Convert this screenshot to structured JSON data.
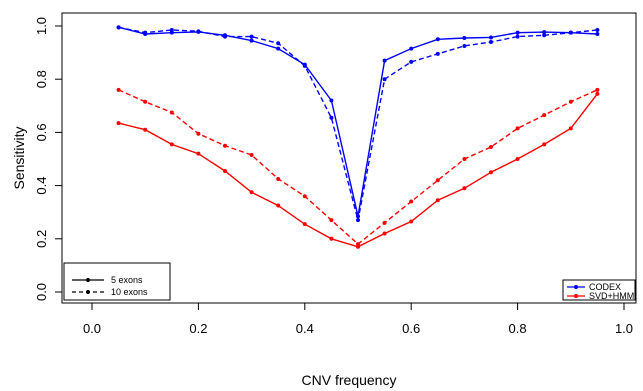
{
  "chart_data": {
    "type": "line",
    "xlabel": "CNV frequency",
    "ylabel": "Sensitivity",
    "xlim": [
      0.0,
      1.0
    ],
    "ylim": [
      0.0,
      1.0
    ],
    "xticks": [
      "0.0",
      "0.2",
      "0.4",
      "0.6",
      "0.8",
      "1.0"
    ],
    "yticks": [
      "0.0",
      "0.2",
      "0.4",
      "0.6",
      "0.8",
      "1.0"
    ],
    "x": [
      0.05,
      0.1,
      0.15,
      0.2,
      0.25,
      0.3,
      0.35,
      0.4,
      0.45,
      0.5,
      0.55,
      0.6,
      0.65,
      0.7,
      0.75,
      0.8,
      0.85,
      0.9,
      0.95
    ],
    "series": [
      {
        "name": "CODEX",
        "exons": "5 exons",
        "color": "#0000ff",
        "dash": "solid",
        "values": [
          0.995,
          0.97,
          0.975,
          0.978,
          0.965,
          0.945,
          0.915,
          0.855,
          0.72,
          0.285,
          0.87,
          0.915,
          0.95,
          0.955,
          0.957,
          0.975,
          0.977,
          0.975,
          0.97
        ]
      },
      {
        "name": "CODEX",
        "exons": "10 exons",
        "color": "#0000ff",
        "dash": "dashed",
        "values": [
          0.995,
          0.975,
          0.985,
          0.98,
          0.96,
          0.96,
          0.935,
          0.85,
          0.655,
          0.27,
          0.8,
          0.865,
          0.895,
          0.925,
          0.94,
          0.96,
          0.965,
          0.975,
          0.985
        ]
      },
      {
        "name": "SVD+HMM",
        "exons": "5 exons",
        "color": "#ff0000",
        "dash": "solid",
        "values": [
          0.635,
          0.61,
          0.555,
          0.52,
          0.455,
          0.375,
          0.325,
          0.255,
          0.2,
          0.17,
          0.22,
          0.265,
          0.345,
          0.39,
          0.45,
          0.5,
          0.555,
          0.615,
          0.745
        ]
      },
      {
        "name": "SVD+HMM",
        "exons": "10 exons",
        "color": "#ff0000",
        "dash": "dashed",
        "values": [
          0.76,
          0.715,
          0.675,
          0.595,
          0.55,
          0.515,
          0.425,
          0.36,
          0.27,
          0.18,
          0.26,
          0.34,
          0.42,
          0.5,
          0.545,
          0.615,
          0.665,
          0.715,
          0.76
        ]
      }
    ],
    "legend_lines": {
      "position": "bottom-left",
      "entries": [
        {
          "label": "5 exons",
          "dash": "solid"
        },
        {
          "label": "10 exons",
          "dash": "dashed"
        }
      ]
    },
    "legend_colors": {
      "position": "bottom-right",
      "entries": [
        {
          "label": "CODEX",
          "color": "#0000ff"
        },
        {
          "label": "SVD+HMM",
          "color": "#ff0000"
        }
      ]
    },
    "grid": false
  }
}
